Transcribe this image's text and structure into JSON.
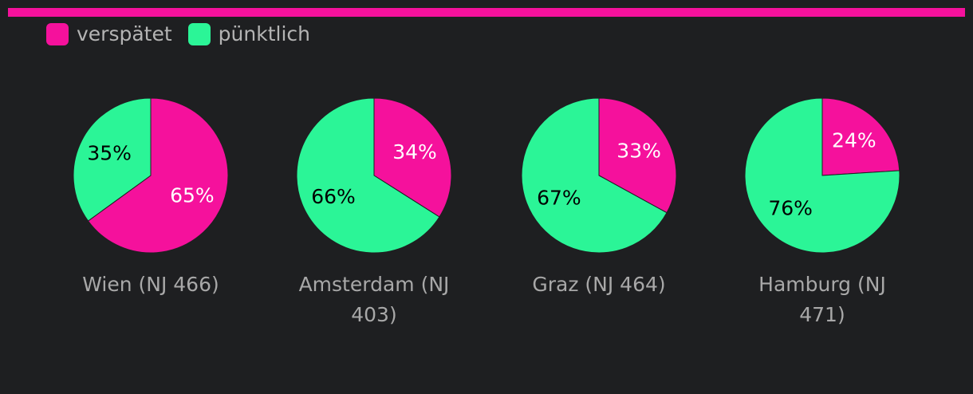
{
  "chart_data": [
    {
      "type": "pie",
      "title": "Wien (NJ 466)",
      "categories": [
        "verspätet",
        "pünktlich"
      ],
      "values": [
        65,
        35
      ],
      "value_labels": [
        "65%",
        "35%"
      ],
      "colors": [
        "#f5119c",
        "#2bf597"
      ]
    },
    {
      "type": "pie",
      "title": "Amsterdam (NJ 403)",
      "categories": [
        "verspätet",
        "pünktlich"
      ],
      "values": [
        34,
        66
      ],
      "value_labels": [
        "34%",
        "66%"
      ],
      "colors": [
        "#f5119c",
        "#2bf597"
      ]
    },
    {
      "type": "pie",
      "title": "Graz (NJ 464)",
      "categories": [
        "verspätet",
        "pünktlich"
      ],
      "values": [
        33,
        67
      ],
      "value_labels": [
        "33%",
        "67%"
      ],
      "colors": [
        "#f5119c",
        "#2bf597"
      ]
    },
    {
      "type": "pie",
      "title": "Hamburg (NJ 471)",
      "categories": [
        "verspätet",
        "pünktlich"
      ],
      "values": [
        24,
        76
      ],
      "value_labels": [
        "24%",
        "76%"
      ],
      "colors": [
        "#f5119c",
        "#2bf597"
      ]
    }
  ]
}
